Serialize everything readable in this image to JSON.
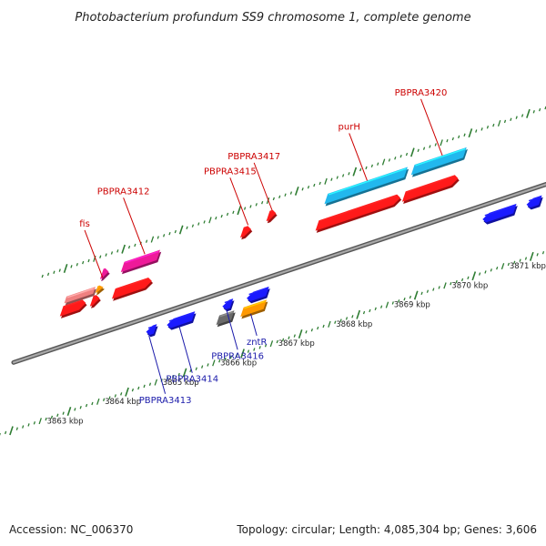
{
  "title": "Photobacterium profundum SS9 chromosome 1, complete genome",
  "footer": {
    "accession": "Accession: NC_006370",
    "summary": "Topology: circular; Length: 4,085,304 bp; Genes: 3,606"
  },
  "colors": {
    "backbone": "#7a7a7a",
    "tick": "#2e7d32",
    "label_forward": "#cc0000",
    "label_reverse": "#1a1aaa",
    "red": "#ff1a1a",
    "blue": "#1a1aff",
    "cyan": "#22b8ee",
    "magenta": "#ee1a99",
    "orange": "#ff9900",
    "gray": "#6a6a6a",
    "pink": "#f08080"
  },
  "scale": {
    "labels": [
      "3863 kbp",
      "3864 kbp",
      "3865 kbp",
      "3866 kbp",
      "3867 kbp",
      "3868 kbp",
      "3869 kbp",
      "3870 kbp",
      "3871 kbp"
    ],
    "positions_kbp": [
      3863,
      3864,
      3865,
      3866,
      3867,
      3868,
      3869,
      3870,
      3871
    ]
  },
  "gene_labels": [
    {
      "text": "fis",
      "strand": "forward"
    },
    {
      "text": "PBPRA3412",
      "strand": "forward"
    },
    {
      "text": "PBPRA3415",
      "strand": "forward"
    },
    {
      "text": "PBPRA3417",
      "strand": "forward"
    },
    {
      "text": "purH",
      "strand": "forward"
    },
    {
      "text": "PBPRA3420",
      "strand": "forward"
    },
    {
      "text": "PBPRA3413",
      "strand": "reverse"
    },
    {
      "text": "PBPRA3414",
      "strand": "reverse"
    },
    {
      "text": "PBPRA3416",
      "strand": "reverse"
    },
    {
      "text": "zntR",
      "strand": "reverse"
    }
  ],
  "features": [
    {
      "name": "fis-gene",
      "kbp_start": 3862.74,
      "kbp_end": 3862.86,
      "lane": "fwd-outer",
      "color": "magenta",
      "arrow": "end"
    },
    {
      "name": "fis-companion",
      "kbp_start": 3862.74,
      "kbp_end": 3862.86,
      "lane": "fwd-mid",
      "color": "orange",
      "arrow": "end"
    },
    {
      "name": "pink-block",
      "kbp_start": 3862.2,
      "kbp_end": 3862.7,
      "lane": "fwd-mid",
      "color": "pink",
      "arrow": "none"
    },
    {
      "name": "red-left",
      "kbp_start": 3862.2,
      "kbp_end": 3862.62,
      "lane": "fwd-inner",
      "color": "red",
      "arrow": "end"
    },
    {
      "name": "red-fis",
      "kbp_start": 3862.72,
      "kbp_end": 3862.86,
      "lane": "fwd-inner",
      "color": "red",
      "arrow": "end"
    },
    {
      "name": "PBPRA3412-gene",
      "kbp_start": 3863.1,
      "kbp_end": 3863.72,
      "lane": "fwd-outer",
      "color": "magenta",
      "arrow": "none"
    },
    {
      "name": "PBPRA3412-red",
      "kbp_start": 3863.1,
      "kbp_end": 3863.76,
      "lane": "fwd-inner",
      "color": "red",
      "arrow": "end"
    },
    {
      "name": "PBPRA3415-red",
      "kbp_start": 3865.2,
      "kbp_end": 3865.36,
      "lane": "fwd-near",
      "color": "red",
      "arrow": "end"
    },
    {
      "name": "PBPRA3417-red",
      "kbp_start": 3865.6,
      "kbp_end": 3865.74,
      "lane": "fwd-far",
      "color": "red",
      "arrow": "end"
    },
    {
      "name": "purH-gene",
      "kbp_start": 3866.62,
      "kbp_end": 3868.0,
      "lane": "fwd-outer",
      "color": "cyan",
      "arrow": "none"
    },
    {
      "name": "purH-red",
      "kbp_start": 3866.62,
      "kbp_end": 3868.06,
      "lane": "fwd-inner",
      "color": "red",
      "arrow": "end"
    },
    {
      "name": "PBPRA3420-gene",
      "kbp_start": 3868.12,
      "kbp_end": 3869.02,
      "lane": "fwd-outer",
      "color": "cyan",
      "arrow": "none"
    },
    {
      "name": "PBPRA3420-red",
      "kbp_start": 3868.12,
      "kbp_end": 3869.06,
      "lane": "fwd-inner",
      "color": "red",
      "arrow": "end"
    },
    {
      "name": "PBPRA3413-gene",
      "kbp_start": 3863.98,
      "kbp_end": 3864.14,
      "lane": "rev-inner",
      "color": "blue",
      "arrow": "start"
    },
    {
      "name": "PBPRA3414-gene",
      "kbp_start": 3864.34,
      "kbp_end": 3864.8,
      "lane": "rev-inner",
      "color": "blue",
      "arrow": "start"
    },
    {
      "name": "PBPRA3416-gene",
      "kbp_start": 3865.3,
      "kbp_end": 3865.46,
      "lane": "rev-inner",
      "color": "blue",
      "arrow": "start"
    },
    {
      "name": "gray-feature",
      "kbp_start": 3865.3,
      "kbp_end": 3865.56,
      "lane": "rev-mid",
      "color": "gray",
      "arrow": "none"
    },
    {
      "name": "blue-zntR-upper",
      "kbp_start": 3865.72,
      "kbp_end": 3866.08,
      "lane": "rev-inner",
      "color": "blue",
      "arrow": "start"
    },
    {
      "name": "zntR-gene",
      "kbp_start": 3865.72,
      "kbp_end": 3866.12,
      "lane": "rev-mid",
      "color": "orange",
      "arrow": "none"
    },
    {
      "name": "blue-right",
      "kbp_start": 3869.8,
      "kbp_end": 3870.36,
      "lane": "rev-inner",
      "color": "blue",
      "arrow": "start"
    },
    {
      "name": "blue-far-right",
      "kbp_start": 3870.56,
      "kbp_end": 3870.8,
      "lane": "rev-inner",
      "color": "blue",
      "arrow": "start"
    }
  ]
}
